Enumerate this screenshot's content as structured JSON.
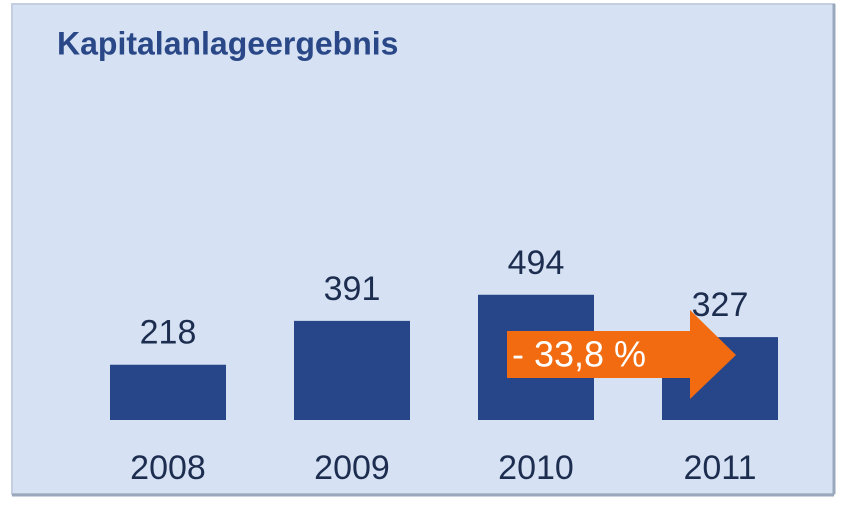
{
  "chart_data": {
    "type": "bar",
    "title": "Kapitalanlageergebnis",
    "categories": [
      "2008",
      "2009",
      "2010",
      "2011"
    ],
    "values": [
      218,
      391,
      494,
      327
    ],
    "color": "#27468a",
    "annotation": "- 33,8 %",
    "annotation_color": "#f26b10"
  }
}
